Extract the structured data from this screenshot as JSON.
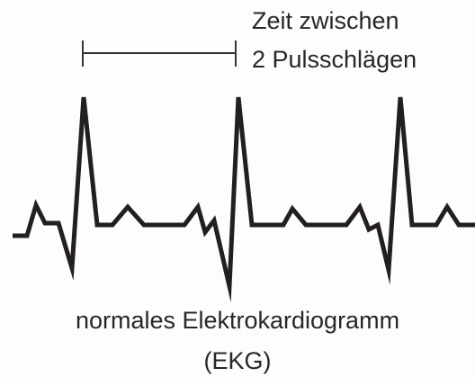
{
  "interval_label": {
    "lines": [
      "Zeit zwischen",
      "2 Pulsschlägen"
    ]
  },
  "caption": {
    "lines": [
      "normales Elektrokardiogramm",
      "(EKG)"
    ]
  }
}
